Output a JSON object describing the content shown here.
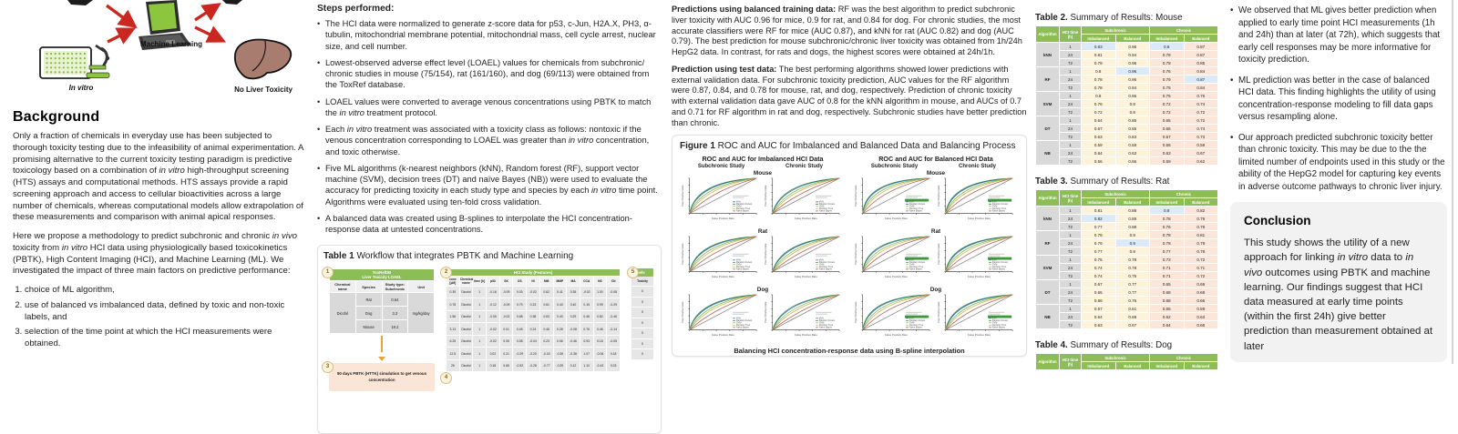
{
  "diagram": {
    "machine_learning_label": "Machine Learning",
    "in_vitro_label": "In vitro",
    "no_liver_label": "No Liver Toxicity"
  },
  "background": {
    "heading": "Background",
    "p1": "Only a fraction of chemicals in everyday use has been subjected to thorough toxicity testing due to the infeasibility of animal experimentation. A promising alternative to the current toxicity testing paradigm is predictive toxicology based on a combination of <i>in vitro</i> high-throughput screening (HTS) assays and computational methods. HTS assays provide a rapid screening approach and access to cellular bioactivities across a large number of chemicals, whereas computational models allow extrapolation of these measurements and comparison with animal apical responses.",
    "p2": "Here we propose a methodology to predict subchronic and chronic <i>in vivo</i> toxicity from <i>in vitro</i> HCI data using physiologically based toxicokinetics (PBTK), High Content Imaging (HCI), and Machine Learning (ML). We investigated the impact of three main factors on predictive performance:",
    "list": [
      "choice of ML algorithm,",
      "use of balanced vs imbalanced data, defined by toxic and non-toxic labels, and",
      "selection of the time point at which the HCI measurements were obtained."
    ]
  },
  "steps": {
    "heading": "Steps performed:",
    "bullets": [
      "The HCI data were normalized to generate z-score data for p53, c-Jun, H2A.X, PH3, α-tubulin, mitochondrial membrane potential, mitochondrial mass, cell cycle arrest, nuclear size, and cell number.",
      "Lowest-observed adverse effect level (LOAEL) values for chemicals from subchronic/ chronic studies in mouse (75/154), rat (161/160), and dog (69/113) were obtained from the ToxRef database.",
      "LOAEL values were converted to average venous concentrations using PBTK to match the <i>in vitro</i> treatment protocol.",
      "Each <i>in vitro</i> treatment was associated with a toxicity class as follows: nontoxic if the venous concentration corresponding to LOAEL was greater than <i>in vitro</i> concentration, and toxic otherwise.",
      "Five ML algorithms (k-nearest neighbors (kNN), Random forest (RF), support vector machine (SVM), decision trees (DT) and naïve Bayes (NB)) were used to evaluate the accuracy for predicting toxicity in each study type and species by each <i>in vitro</i> time point. Algorithms were evaluated using ten-fold cross validation.",
      "A balanced data was created using B-splines to interpolate the HCI concentration-response data at untested concentrations."
    ]
  },
  "table1": {
    "caption_label": "Table 1",
    "caption_text": " Workflow that integrates PBTK and Machine Learning",
    "badges": [
      "1",
      "2",
      "3",
      "4",
      "5"
    ],
    "loael": {
      "header_line1": "ToxRefDB",
      "header_line2": "Liver Toxicity LOAEL",
      "columns": [
        "Chemical name",
        "Species",
        "Study type: Subchronic",
        "Unit"
      ],
      "chemical": "Dicofol",
      "unit": "mg/kg/day",
      "rows": [
        [
          "Rat",
          "0.64"
        ],
        [
          "Dog",
          "3.3"
        ],
        [
          "Mouse",
          "18.2"
        ]
      ]
    },
    "pbtk_box": "90 days PBTK (HTTK) simulation to get venous concentration",
    "hci": {
      "header": "HCI Study (Features)",
      "columns": [
        "conc [µM]",
        "Chemical name",
        "time [h]",
        "p53",
        "SK",
        "OS",
        "NI",
        "MM",
        "MMP",
        "MA",
        "CCA",
        "NS",
        "CN"
      ],
      "rows": [
        [
          "0.39",
          "Dicofol",
          "1",
          "-0.16",
          "-0.09",
          "0.03",
          "-0.02",
          "0.62",
          "0.41",
          "0.35",
          "-0.02",
          "1.00",
          "-0.08"
        ],
        [
          "0.78",
          "Dicofol",
          "1",
          "-0.12",
          "-0.09",
          "0.79",
          "0.23",
          "0.61",
          "0.43",
          "0.40",
          "0.15",
          "0.99",
          "-0.29"
        ],
        [
          "1.56",
          "Dicofol",
          "1",
          "-0.05",
          "-0.02",
          "0.68",
          "0.38",
          "0.63",
          "0.40",
          "0.29",
          "0.46",
          "0.82",
          "-0.46"
        ],
        [
          "3.13",
          "Dicofol",
          "1",
          "-0.02",
          "0.01",
          "0.45",
          "0.24",
          "0.48",
          "0.28",
          "-0.08",
          "0.76",
          "0.46",
          "-0.14"
        ],
        [
          "6.25",
          "Dicofol",
          "1",
          "-0.02",
          "0.05",
          "0.08",
          "-0.04",
          "0.23",
          "0.06",
          "-0.46",
          "0.93",
          "0.18",
          "-0.05"
        ],
        [
          "12.5",
          "Dicofol",
          "1",
          "0.02",
          "0.21",
          "-0.29",
          "-0.20",
          "-0.18",
          "-0.35",
          "-0.38",
          "1.07",
          "-0.06",
          "0.18"
        ],
        [
          "25",
          "Dicofol",
          "1",
          "0.18",
          "0.65",
          "-0.52",
          "-0.28",
          "-0.77",
          "-0.39",
          "0.12",
          "1.10",
          "-0.43",
          "0.03"
        ]
      ]
    },
    "labels_box": {
      "header": "Labels",
      "column": "Toxicity",
      "values": [
        "0",
        "0",
        "0",
        "0",
        "0",
        "0",
        "0"
      ]
    }
  },
  "results_text": {
    "p1_lead": "Predictions using balanced training data:",
    "p1": " RF was the best algorithm to predict subchronic liver toxicity with AUC 0.96 for mice, 0.9 for rat, and 0.84 for dog. For chronic studies, the most accurate classifiers were RF for mice (AUC 0.87), and kNN for rat (AUC 0.82) and dog (AUC 0.79). The best prediction for mouse subchronic/chronic liver toxicity was obtained from 1h/24h HepG2 data. In contrast, for rats and dogs, the highest scores were obtained at 24h/1h.",
    "p2_lead": "Prediction using test data:",
    "p2": " The best performing algorithms showed lower predictions with external validation data. For subchronic toxicity prediction, AUC values for the RF algorithm were 0.87, 0.84, and 0.78 for mouse, rat, and dog, respectively. Prediction of chronic toxicity with external validation data gave AUC of 0.8 for the kNN algorithm in mouse, and AUCs of 0.7 and 0.71 for RF algorithm in rat and dog, respectively. Subchronic studies have better prediction than chronic."
  },
  "figure1": {
    "caption_label": "Figure 1",
    "caption_text": " ROC and AUC for Imbalanced and Balanced Data and Balancing Process",
    "group_headers": [
      "ROC and AUC for Imbalanced HCI Data",
      "ROC and AUC for Balanced HCI Data"
    ],
    "study_headers": [
      "Subchronic Study",
      "Chronic Study"
    ],
    "species": [
      "Mouse",
      "Rat",
      "Dog"
    ],
    "legend": [
      "kNN",
      "Random Forest",
      "SVM",
      "Decision Tree",
      "Naive Bayes"
    ],
    "legend_colors": [
      "#3a7ca5",
      "#2f7d5d",
      "#8ab84f",
      "#c9b458",
      "#b65c4f"
    ],
    "x_axis": "False Positive Rate",
    "y_axis": "True Positive Rate",
    "footer": "Balancing HCI concentration-response data using B-spline interpolation"
  },
  "results_tables": {
    "headers": {
      "algorithm": "Algorithm",
      "time": "HCI time (h)",
      "subchronic": "Subchronic",
      "chronic": "Chronic",
      "imbalanced": "Imbalanced",
      "balanced": "Balanced"
    },
    "mouse": {
      "title_label": "Table 2.",
      "title_text": " Summary of Results: Mouse",
      "algorithms": [
        {
          "name": "kNN",
          "rows": [
            {
              "time": "1",
              "values": [
                "0.83",
                "0.95",
                "0.8",
                "0.87"
              ],
              "highlight": [
                0,
                2
              ]
            },
            {
              "time": "24",
              "values": [
                "0.81",
                "0.94",
                "0.78",
                "0.87"
              ],
              "highlight": []
            },
            {
              "time": "72",
              "values": [
                "0.79",
                "0.95",
                "0.78",
                "0.85"
              ],
              "highlight": []
            }
          ]
        },
        {
          "name": "RF",
          "rows": [
            {
              "time": "1",
              "values": [
                "0.8",
                "0.96",
                "0.76",
                "0.84"
              ],
              "highlight": [
                1
              ]
            },
            {
              "time": "24",
              "values": [
                "0.78",
                "0.96",
                "0.79",
                "0.87"
              ],
              "highlight": [
                3
              ]
            },
            {
              "time": "72",
              "values": [
                "0.78",
                "0.94",
                "0.75",
                "0.84"
              ],
              "highlight": []
            }
          ]
        },
        {
          "name": "SVM",
          "rows": [
            {
              "time": "1",
              "values": [
                "0.8",
                "0.86",
                "0.75",
                "0.76"
              ],
              "highlight": []
            },
            {
              "time": "24",
              "values": [
                "0.76",
                "0.8",
                "0.72",
                "0.74"
              ],
              "highlight": []
            },
            {
              "time": "72",
              "values": [
                "0.72",
                "0.8",
                "0.72",
                "0.72"
              ],
              "highlight": []
            }
          ]
        },
        {
          "name": "DT",
          "rows": [
            {
              "time": "1",
              "values": [
                "0.64",
                "0.85",
                "0.65",
                "0.72"
              ],
              "highlight": []
            },
            {
              "time": "24",
              "values": [
                "0.67",
                "0.85",
                "0.66",
                "0.74"
              ],
              "highlight": []
            },
            {
              "time": "72",
              "values": [
                "0.63",
                "0.83",
                "0.67",
                "0.73"
              ],
              "highlight": []
            }
          ]
        },
        {
          "name": "NB",
          "rows": [
            {
              "time": "1",
              "values": [
                "0.59",
                "0.58",
                "0.56",
                "0.59"
              ],
              "highlight": []
            },
            {
              "time": "24",
              "values": [
                "0.64",
                "0.63",
                "0.63",
                "0.67"
              ],
              "highlight": []
            },
            {
              "time": "72",
              "values": [
                "0.56",
                "0.66",
                "0.59",
                "0.62"
              ],
              "highlight": []
            }
          ]
        }
      ]
    },
    "rat": {
      "title_label": "Table 3.",
      "title_text": " Summary of Results: Rat",
      "algorithms": [
        {
          "name": "kNN",
          "rows": [
            {
              "time": "1",
              "values": [
                "0.81",
                "0.88",
                "0.8",
                "0.82"
              ],
              "highlight": [
                2
              ]
            },
            {
              "time": "24",
              "values": [
                "0.82",
                "0.89",
                "0.78",
                "0.79"
              ],
              "highlight": [
                0
              ]
            },
            {
              "time": "72",
              "values": [
                "0.77",
                "0.88",
                "0.76",
                "0.78"
              ],
              "highlight": []
            }
          ]
        },
        {
          "name": "RF",
          "rows": [
            {
              "time": "1",
              "values": [
                "0.78",
                "0.9",
                "0.78",
                "0.81"
              ],
              "highlight": []
            },
            {
              "time": "24",
              "values": [
                "0.79",
                "0.9",
                "0.78",
                "0.79"
              ],
              "highlight": [
                1
              ]
            },
            {
              "time": "72",
              "values": [
                "0.77",
                "0.9",
                "0.77",
                "0.78"
              ],
              "highlight": []
            }
          ]
        },
        {
          "name": "SVM",
          "rows": [
            {
              "time": "1",
              "values": [
                "0.75",
                "0.78",
                "0.73",
                "0.72"
              ],
              "highlight": []
            },
            {
              "time": "24",
              "values": [
                "0.74",
                "0.78",
                "0.71",
                "0.71"
              ],
              "highlight": []
            },
            {
              "time": "72",
              "values": [
                "0.74",
                "0.75",
                "0.71",
                "0.72"
              ],
              "highlight": []
            }
          ]
        },
        {
          "name": "DT",
          "rows": [
            {
              "time": "1",
              "values": [
                "0.67",
                "0.77",
                "0.65",
                "0.69"
              ],
              "highlight": []
            },
            {
              "time": "24",
              "values": [
                "0.65",
                "0.77",
                "0.68",
                "0.68"
              ],
              "highlight": []
            },
            {
              "time": "72",
              "values": [
                "0.66",
                "0.76",
                "0.68",
                "0.66"
              ],
              "highlight": []
            }
          ]
        },
        {
          "name": "NB",
          "rows": [
            {
              "time": "1",
              "values": [
                "0.57",
                "0.61",
                "0.55",
                "0.59"
              ],
              "highlight": []
            },
            {
              "time": "24",
              "values": [
                "0.64",
                "0.68",
                "0.62",
                "0.63"
              ],
              "highlight": []
            },
            {
              "time": "72",
              "values": [
                "0.63",
                "0.67",
                "0.64",
                "0.66"
              ],
              "highlight": []
            }
          ]
        }
      ]
    },
    "dog": {
      "title_label": "Table 4.",
      "title_text": " Summary of Results: Dog",
      "algorithms": []
    }
  },
  "findings": {
    "bullets": [
      "We observed that ML gives better prediction when applied to early time point HCI measurements (1h and 24h) than at later (at 72h), which suggests that early cell responses may be more informative for toxicity prediction.",
      "ML prediction was better in the case of balanced HCI data. This finding highlights the utility of using concentration-response modeling to fill data gaps versus resampling alone.",
      "Our approach predicted subchronic toxicity better than chronic toxicity. This may be due to the the limited number of endpoints used in this study or the ability of the HepG2 model for capturing key events in adverse outcome pathways to chronic liver injury."
    ]
  },
  "conclusion": {
    "heading": "Conclusion",
    "text": "This study shows the utility of a new approach for linking <i>in vitro</i> data to <i>in vivo</i> outcomes using PBTK and machine learning. Our findings suggest that HCI data measured at early time points (within the first 24h) give better prediction than measurement obtained at later"
  }
}
